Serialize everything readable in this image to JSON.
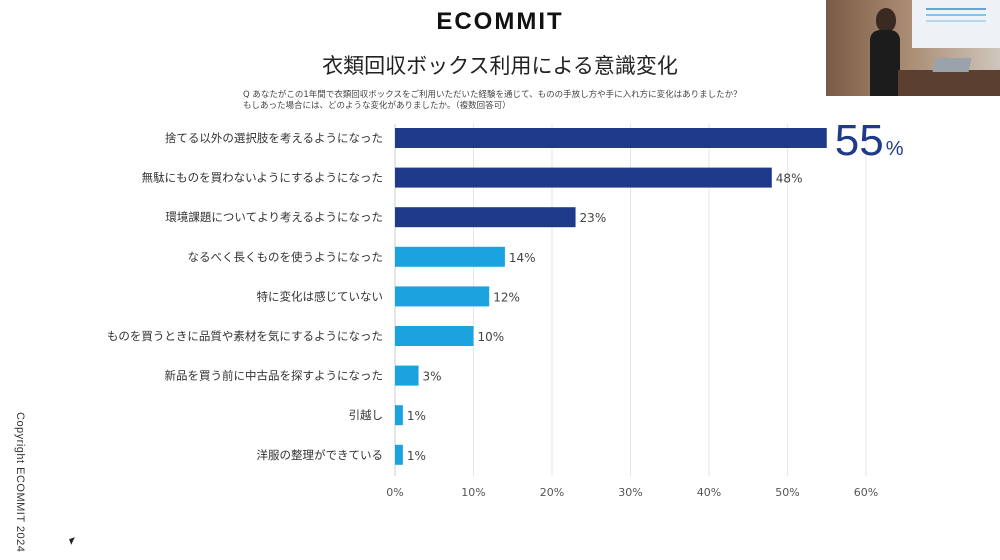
{
  "brand": "ECOMMIT",
  "title": "衣類回収ボックス利用による意識変化",
  "question_lines": [
    "Q あなたがこの1年間で衣類回収ボックスをご利用いただいた経験を通じて、ものの手放し方や手に入れ方に変化はありましたか？",
    "もしあった場合には、どのような変化がありましたか。（複数回答可）"
  ],
  "copyright": "Copyright ECOMMIT 2024",
  "colors": {
    "dark_bar": "#1f3a8a",
    "light_bar": "#1aa3df"
  },
  "video_overlay": {
    "icon": "presenter-video-feed"
  },
  "chart_data": {
    "type": "bar",
    "orientation": "horizontal",
    "categories": [
      "捨てる以外の選択肢を考えるようになった",
      "無駄にものを買わないようにするようになった",
      "環境課題についてより考えるようになった",
      "なるべく長くものを使うようになった",
      "特に変化は感じていない",
      "ものを買うときに品質や素材を気にするようになった",
      "新品を買う前に中古品を探すようになった",
      "引越し",
      "洋服の整理ができている"
    ],
    "values": [
      55,
      48,
      23,
      14,
      12,
      10,
      3,
      1,
      1
    ],
    "value_labels": [
      "55",
      "48%",
      "23%",
      "14%",
      "12%",
      "10%",
      "3%",
      "1%",
      "1%"
    ],
    "highlight_unit": "%",
    "bar_colors": [
      "#1f3a8a",
      "#1f3a8a",
      "#1f3a8a",
      "#1aa3df",
      "#1aa3df",
      "#1aa3df",
      "#1aa3df",
      "#1aa3df",
      "#1aa3df"
    ],
    "xlim": [
      0,
      60
    ],
    "x_ticks": [
      "0%",
      "10%",
      "20%",
      "30%",
      "40%",
      "50%",
      "60%"
    ],
    "grid": true,
    "legend": "none"
  }
}
